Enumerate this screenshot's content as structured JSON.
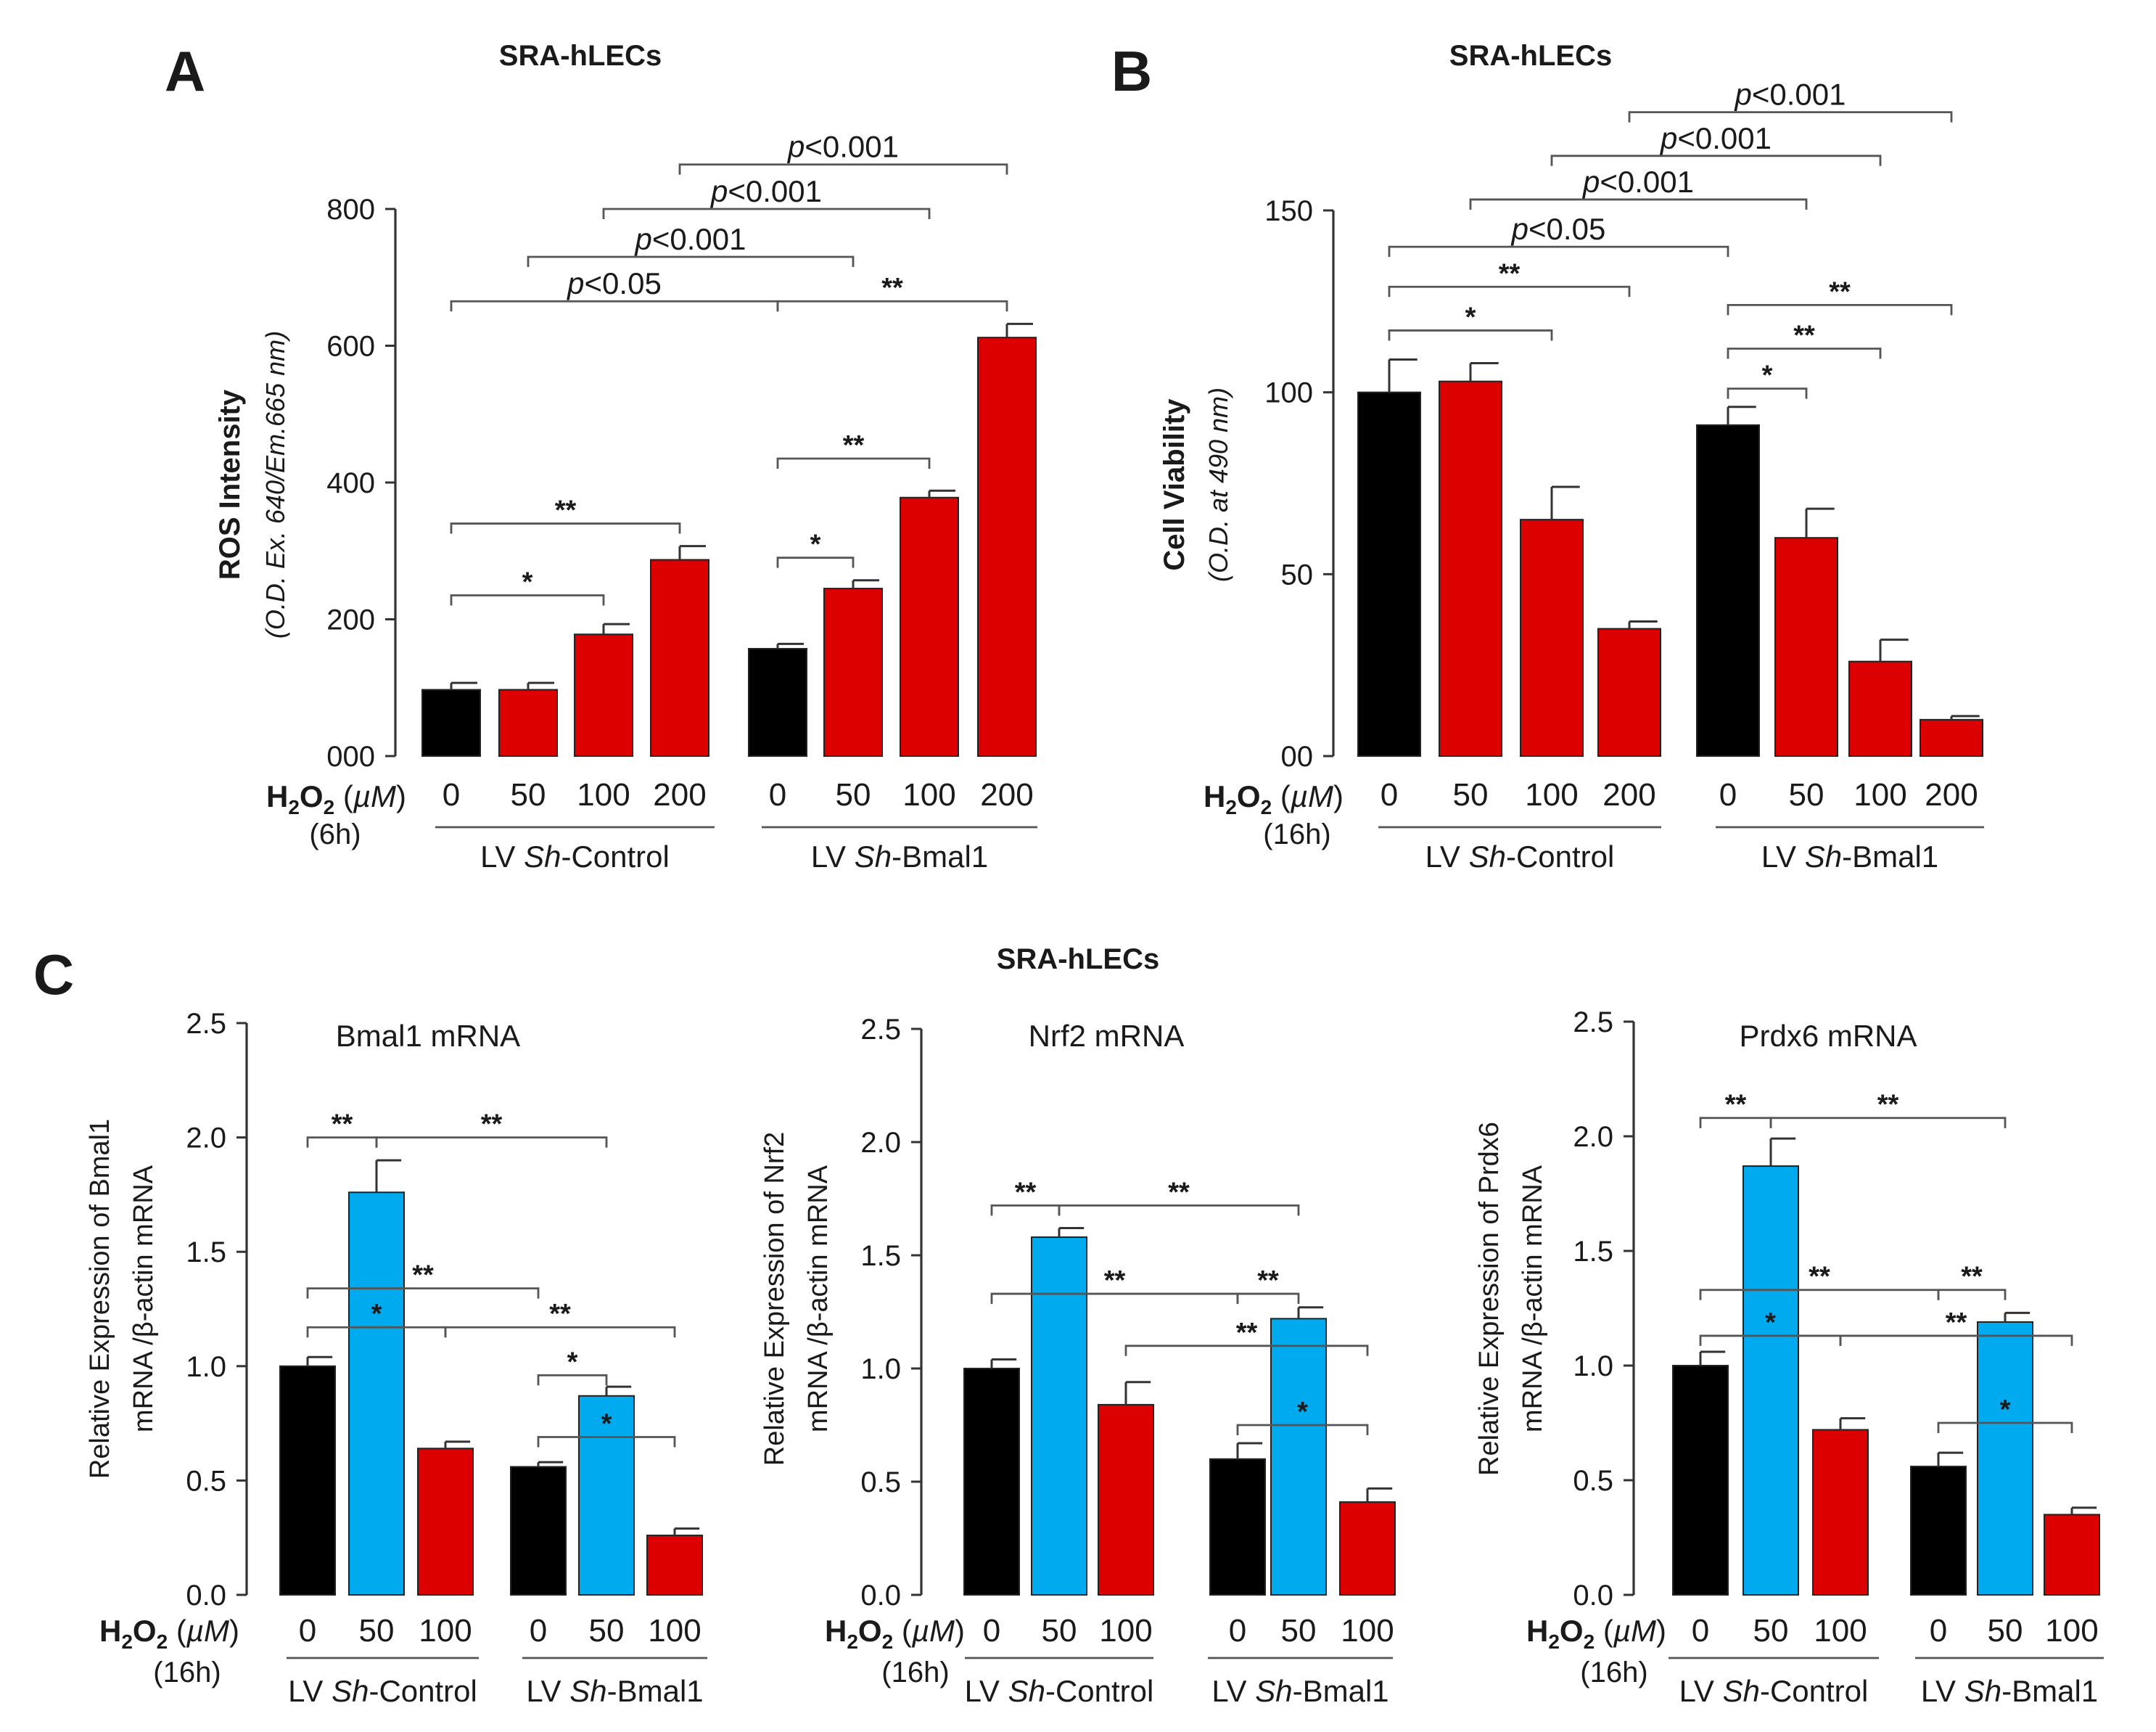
{
  "figure": {
    "section_c_title": "SRA-hLECs"
  },
  "chart_data": [
    {
      "id": "A",
      "type": "bar",
      "panel_label": "A",
      "title": "SRA-hLECs",
      "ylabel": "ROS Intensity",
      "ylabel_sub": "(O.D. Ex. 640/Em.665 nm)",
      "ylim": [
        0,
        800
      ],
      "yticks": [
        0,
        200,
        400,
        600,
        800
      ],
      "ytick_labels": [
        "000",
        "200",
        "400",
        "600",
        "800"
      ],
      "condition_label": "H2O2 (µM)",
      "time_label": "(6h)",
      "groups": [
        "LV Sh-Control",
        "LV Sh-Bmal1"
      ],
      "categories": [
        "0",
        "50",
        "100",
        "200",
        "0",
        "50",
        "100",
        "200"
      ],
      "values": [
        97,
        97,
        178,
        287,
        157,
        245,
        378,
        612
      ],
      "errors": [
        10,
        10,
        15,
        20,
        7,
        12,
        10,
        20
      ],
      "colors": [
        "#000000",
        "#dd0000",
        "#dd0000",
        "#dd0000",
        "#000000",
        "#dd0000",
        "#dd0000",
        "#dd0000"
      ],
      "annotations": [
        {
          "text": "*",
          "from": 0,
          "to": 2,
          "y": 235
        },
        {
          "text": "**",
          "from": 0,
          "to": 3,
          "y": 340
        },
        {
          "text": "*",
          "from": 4,
          "to": 5,
          "y": 290
        },
        {
          "text": "**",
          "from": 4,
          "to": 6,
          "y": 435
        },
        {
          "text": "p<0.05",
          "from": 0,
          "to": 4,
          "y": 665
        },
        {
          "text": "**",
          "from": 4,
          "to": 7,
          "y": 665
        },
        {
          "text": "p<0.001",
          "from": 1,
          "to": 5,
          "y": 730
        },
        {
          "text": "p<0.001",
          "from": 2,
          "to": 6,
          "y": 800
        },
        {
          "text": "p<0.001",
          "from": 3,
          "to": 7,
          "y": 865
        }
      ]
    },
    {
      "id": "B",
      "type": "bar",
      "panel_label": "B",
      "title": "SRA-hLECs",
      "ylabel": "Cell Viability",
      "ylabel_sub": "(O.D. at 490 nm)",
      "ylim": [
        0,
        150
      ],
      "yticks": [
        0,
        50,
        100,
        150
      ],
      "ytick_labels": [
        "00",
        "50",
        "100",
        "150"
      ],
      "condition_label": "H2O2 (µM)",
      "time_label": "(16h)",
      "groups": [
        "LV Sh-Control",
        "LV Sh-Bmal1"
      ],
      "categories": [
        "0",
        "50",
        "100",
        "200",
        "0",
        "50",
        "100",
        "200"
      ],
      "values": [
        100,
        103,
        65,
        35,
        91,
        60,
        26,
        10
      ],
      "errors": [
        9,
        5,
        9,
        2,
        5,
        8,
        6,
        1
      ],
      "colors": [
        "#000000",
        "#dd0000",
        "#dd0000",
        "#dd0000",
        "#000000",
        "#dd0000",
        "#dd0000",
        "#dd0000"
      ],
      "annotations": [
        {
          "text": "*",
          "from": 0,
          "to": 2,
          "y": 117
        },
        {
          "text": "**",
          "from": 0,
          "to": 3,
          "y": 129
        },
        {
          "text": "p<0.05",
          "from": 0,
          "to": 4,
          "y": 140
        },
        {
          "text": "*",
          "from": 4,
          "to": 5,
          "y": 101
        },
        {
          "text": "**",
          "from": 4,
          "to": 6,
          "y": 112
        },
        {
          "text": "**",
          "from": 4,
          "to": 7,
          "y": 124
        },
        {
          "text": "p<0.001",
          "from": 1,
          "to": 5,
          "y": 153
        },
        {
          "text": "p<0.001",
          "from": 2,
          "to": 6,
          "y": 165
        },
        {
          "text": "p<0.001",
          "from": 3,
          "to": 7,
          "y": 177
        }
      ]
    },
    {
      "id": "C1",
      "type": "bar",
      "panel_label": "C",
      "subtitle": "Bmal1 mRNA",
      "ylabel": "Relative Expression of Bmal1",
      "ylabel_sub": "mRNA /β-actin mRNA",
      "ylim": [
        0,
        2.5
      ],
      "yticks": [
        0,
        0.5,
        1.0,
        1.5,
        2.0,
        2.5
      ],
      "ytick_labels": [
        "0.0",
        "0.5",
        "1.0",
        "1.5",
        "2.0",
        "2.5"
      ],
      "condition_label": "H2O2 (µM)",
      "time_label": "(16h)",
      "groups": [
        "LV Sh-Control",
        "LV Sh-Bmal1"
      ],
      "categories": [
        "0",
        "50",
        "100",
        "0",
        "50",
        "100"
      ],
      "values": [
        1.0,
        1.76,
        0.64,
        0.56,
        0.87,
        0.26
      ],
      "errors": [
        0.04,
        0.14,
        0.03,
        0.02,
        0.04,
        0.03
      ],
      "colors": [
        "#000000",
        "#00aaee",
        "#dd0000",
        "#000000",
        "#00aaee",
        "#dd0000"
      ],
      "annotations": [
        {
          "text": "**",
          "from": 0,
          "to": 1,
          "y": 2.0
        },
        {
          "text": "**",
          "from": 1,
          "to": 4,
          "y": 2.0
        },
        {
          "text": "**",
          "from": 0,
          "to": 3,
          "y": 1.34
        },
        {
          "text": "*",
          "from": 0,
          "to": 2,
          "y": 1.17
        },
        {
          "text": "**",
          "from": 2,
          "to": 5,
          "y": 1.17
        },
        {
          "text": "*",
          "from": 3,
          "to": 4,
          "y": 0.96
        },
        {
          "text": "*",
          "from": 3,
          "to": 5,
          "y": 0.69
        }
      ]
    },
    {
      "id": "C2",
      "type": "bar",
      "subtitle": "Nrf2 mRNA",
      "ylabel": "Relative Expression of Nrf2",
      "ylabel_sub": "mRNA /β-actin mRNA",
      "ylim": [
        0,
        2.5
      ],
      "yticks": [
        0,
        0.5,
        1.0,
        1.5,
        2.0,
        2.5
      ],
      "ytick_labels": [
        "0.0",
        "0.5",
        "1.0",
        "1.5",
        "2.0",
        "2.5"
      ],
      "condition_label": "H2O2 (µM)",
      "time_label": "(16h)",
      "groups": [
        "LV Sh-Control",
        "LV Sh-Bmal1"
      ],
      "categories": [
        "0",
        "50",
        "100",
        "0",
        "50",
        "100"
      ],
      "values": [
        1.0,
        1.58,
        0.84,
        0.6,
        1.22,
        0.41
      ],
      "errors": [
        0.04,
        0.04,
        0.1,
        0.07,
        0.05,
        0.06
      ],
      "colors": [
        "#000000",
        "#00aaee",
        "#dd0000",
        "#000000",
        "#00aaee",
        "#dd0000"
      ],
      "annotations": [
        {
          "text": "**",
          "from": 0,
          "to": 1,
          "y": 1.72
        },
        {
          "text": "**",
          "from": 1,
          "to": 4,
          "y": 1.72
        },
        {
          "text": "**",
          "from": 0,
          "to": 3,
          "y": 1.33
        },
        {
          "text": "**",
          "from": 3,
          "to": 4,
          "y": 1.33
        },
        {
          "text": "**",
          "from": 2,
          "to": 5,
          "y": 1.1
        },
        {
          "text": "*",
          "from": 3,
          "to": 5,
          "y": 0.75
        }
      ]
    },
    {
      "id": "C3",
      "type": "bar",
      "subtitle": "Prdx6 mRNA",
      "ylabel": "Relative Expression of Prdx6",
      "ylabel_sub": "mRNA /β-actin mRNA",
      "ylim": [
        0,
        2.5
      ],
      "yticks": [
        0,
        0.5,
        1.0,
        1.5,
        2.0,
        2.5
      ],
      "ytick_labels": [
        "0.0",
        "0.5",
        "1.0",
        "1.5",
        "2.0",
        "2.5"
      ],
      "condition_label": "H2O2 (µM)",
      "time_label": "(16h)",
      "groups": [
        "LV Sh-Control",
        "LV Sh-Bmal1"
      ],
      "categories": [
        "0",
        "50",
        "100",
        "0",
        "50",
        "100"
      ],
      "values": [
        1.0,
        1.87,
        0.72,
        0.56,
        1.19,
        0.35
      ],
      "errors": [
        0.06,
        0.12,
        0.05,
        0.06,
        0.04,
        0.03
      ],
      "colors": [
        "#000000",
        "#00aaee",
        "#dd0000",
        "#000000",
        "#00aaee",
        "#dd0000"
      ],
      "annotations": [
        {
          "text": "**",
          "from": 0,
          "to": 1,
          "y": 2.08
        },
        {
          "text": "**",
          "from": 1,
          "to": 4,
          "y": 2.08
        },
        {
          "text": "**",
          "from": 0,
          "to": 3,
          "y": 1.33
        },
        {
          "text": "**",
          "from": 3,
          "to": 4,
          "y": 1.33
        },
        {
          "text": "*",
          "from": 0,
          "to": 2,
          "y": 1.13
        },
        {
          "text": "**",
          "from": 2,
          "to": 5,
          "y": 1.13
        },
        {
          "text": "*",
          "from": 3,
          "to": 5,
          "y": 0.75
        }
      ]
    }
  ]
}
